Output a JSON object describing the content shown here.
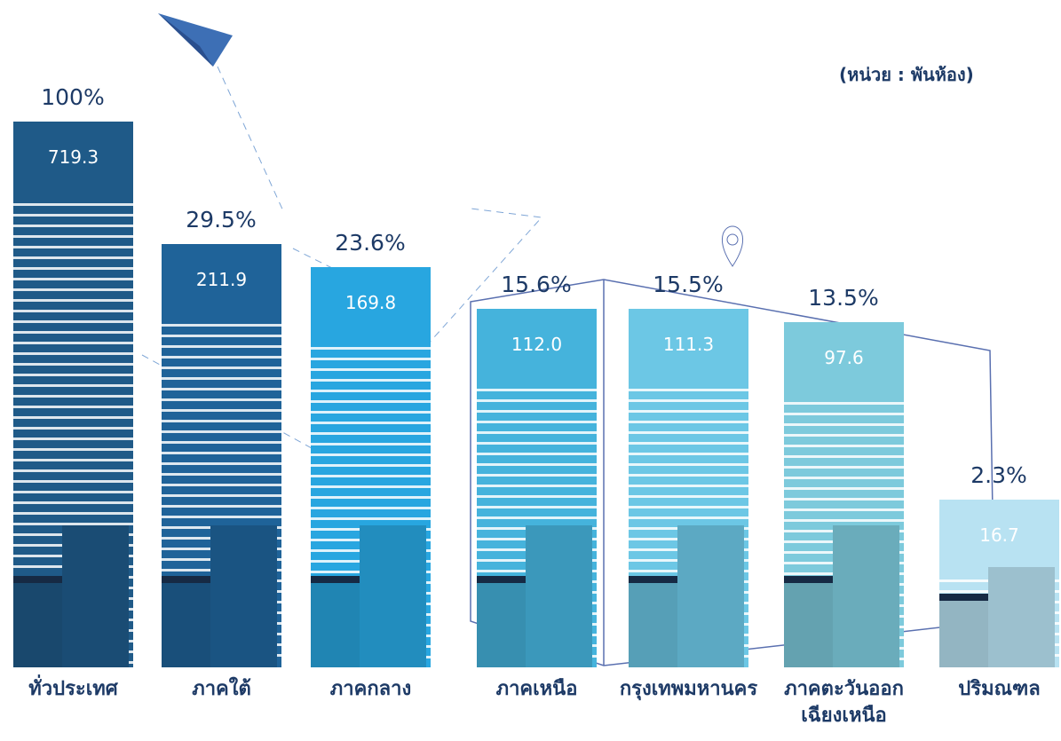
{
  "chart_data": {
    "type": "bar",
    "unit_note": "(หน่วย : พันห้อง)",
    "categories": [
      "ทั่วประเทศ",
      "ภาคใต้",
      "ภาคกลาง",
      "ภาคเหนือ",
      "กรุงเทพมหานคร",
      "ภาคตะวันออก\nเฉียงเหนือ",
      "ปริมณฑล"
    ],
    "series": [
      {
        "values": [
          719.3,
          211.9,
          169.8,
          112.0,
          111.3,
          97.6,
          16.7
        ],
        "value_labels": [
          "719.3",
          "211.9",
          "169.8",
          "112.0",
          "111.3",
          "97.6",
          "16.7"
        ],
        "colors": [
          "#1f5a88",
          "#1f6399",
          "#28a6e0",
          "#45b3dc",
          "#6cc7e5",
          "#7dcadc",
          "#b8e2f2"
        ]
      },
      {
        "values": [
          100,
          29.5,
          23.6,
          15.6,
          15.5,
          13.5,
          2.3
        ],
        "value_labels": [
          "100%",
          "29.5%",
          "23.6%",
          "15.6%",
          "15.5%",
          "13.5%",
          "2.3%"
        ],
        "color": "#1d3a66"
      }
    ]
  }
}
